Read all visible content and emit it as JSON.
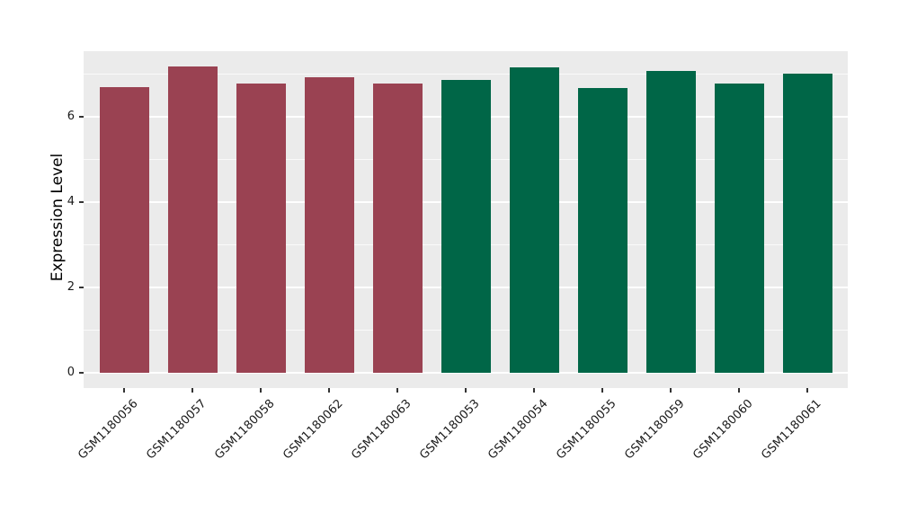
{
  "chart_data": {
    "type": "bar",
    "title": "",
    "xlabel": "",
    "ylabel": "Expression Level",
    "categories": [
      "GSM1180056",
      "GSM1180057",
      "GSM1180058",
      "GSM1180062",
      "GSM1180063",
      "GSM1180053",
      "GSM1180054",
      "GSM1180055",
      "GSM1180059",
      "GSM1180060",
      "GSM1180061"
    ],
    "values": [
      6.69,
      7.18,
      6.77,
      6.93,
      6.78,
      6.86,
      7.15,
      6.67,
      7.07,
      6.77,
      7.01
    ],
    "bar_colors": [
      "#9A4252",
      "#9A4252",
      "#9A4252",
      "#9A4252",
      "#9A4252",
      "#006647",
      "#006647",
      "#006647",
      "#006647",
      "#006647",
      "#006647"
    ],
    "group_colors": {
      "left_group": "#9A4252",
      "right_group": "#006647"
    },
    "yticks": [
      0,
      2,
      4,
      6
    ],
    "minor_gridlines": [
      1,
      3,
      5,
      7
    ],
    "ylim": [
      0,
      7.5
    ],
    "x_label_rotation_deg": 45,
    "legend_position": "none",
    "grid": true,
    "panel_background": "#EBEBEB",
    "gridline_color": "#FFFFFF",
    "figure_background": "#FFFFFF"
  }
}
